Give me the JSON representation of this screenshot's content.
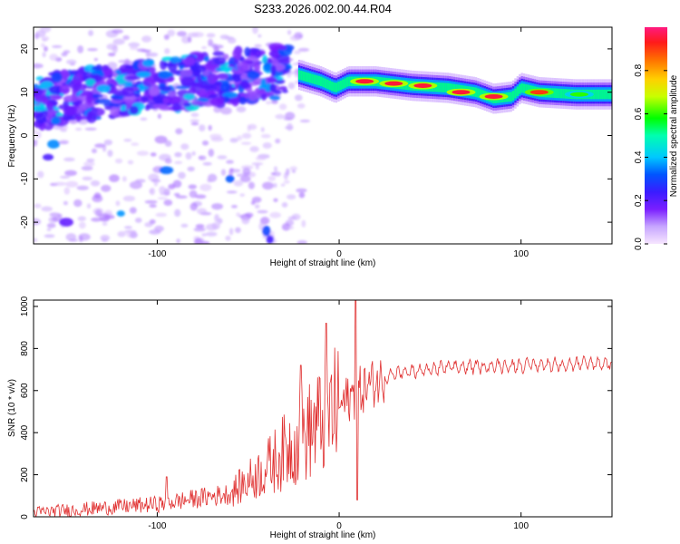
{
  "title": "S233.2026.002.00.44.R04",
  "chart_data": [
    {
      "type": "heatmap",
      "xlabel": "Height of straight line (km)",
      "ylabel": "Frequency (Hz)",
      "xlim": [
        -168,
        150
      ],
      "ylim": [
        -25,
        25
      ],
      "xticks": [
        -100,
        0,
        100
      ],
      "yticks": [
        -20,
        -10,
        0,
        10,
        20
      ],
      "colorbar": {
        "label": "Normalized spectral amplitude",
        "range": [
          0,
          1
        ],
        "ticks": [
          "0.0",
          "0.2",
          "0.4",
          "0.6",
          "0.8"
        ]
      },
      "ridge": [
        {
          "x": -22,
          "freq": 14.0
        },
        {
          "x": -10,
          "freq": 12.5
        },
        {
          "x": -2,
          "freq": 11.0
        },
        {
          "x": 5,
          "freq": 12.5
        },
        {
          "x": 20,
          "freq": 12.5
        },
        {
          "x": 40,
          "freq": 11.5
        },
        {
          "x": 60,
          "freq": 11.0
        },
        {
          "x": 75,
          "freq": 10.0
        },
        {
          "x": 85,
          "freq": 8.5
        },
        {
          "x": 95,
          "freq": 9.0
        },
        {
          "x": 100,
          "freq": 11.0
        },
        {
          "x": 110,
          "freq": 10.0
        },
        {
          "x": 130,
          "freq": 9.5
        },
        {
          "x": 150,
          "freq": 9.5
        }
      ],
      "hotspots": [
        {
          "x": 14,
          "freq": 12.5,
          "amp": 0.95
        },
        {
          "x": 30,
          "freq": 12.0,
          "amp": 0.95
        },
        {
          "x": 46,
          "freq": 11.5,
          "amp": 0.95
        },
        {
          "x": 67,
          "freq": 10.0,
          "amp": 0.95
        },
        {
          "x": 85,
          "freq": 9.0,
          "amp": 0.95
        },
        {
          "x": 110,
          "freq": 10.0,
          "amp": 0.9
        },
        {
          "x": 132,
          "freq": 9.5,
          "amp": 0.6
        }
      ]
    },
    {
      "type": "line",
      "xlabel": "Height of straight line (km)",
      "ylabel": "SNR (10 * v/v)",
      "xlim": [
        -168,
        150
      ],
      "ylim": [
        0,
        1030
      ],
      "xticks": [
        -100,
        0,
        100
      ],
      "yticks": [
        0,
        200,
        400,
        600,
        800,
        1000
      ],
      "color": "#e03030",
      "trend": [
        {
          "x": -168,
          "y": 20
        },
        {
          "x": -100,
          "y": 60
        },
        {
          "x": -60,
          "y": 110
        },
        {
          "x": -40,
          "y": 230
        },
        {
          "x": -25,
          "y": 350
        },
        {
          "x": -10,
          "y": 450
        },
        {
          "x": 5,
          "y": 560
        },
        {
          "x": 15,
          "y": 620
        },
        {
          "x": 30,
          "y": 680
        },
        {
          "x": 60,
          "y": 710
        },
        {
          "x": 100,
          "y": 720
        },
        {
          "x": 150,
          "y": 730
        }
      ],
      "spikes": [
        {
          "x": 9,
          "y": 1030
        },
        {
          "x": 10,
          "y": 80
        },
        {
          "x": -7,
          "y": 920
        },
        {
          "x": -21,
          "y": 720
        },
        {
          "x": -95,
          "y": 190
        }
      ]
    }
  ]
}
